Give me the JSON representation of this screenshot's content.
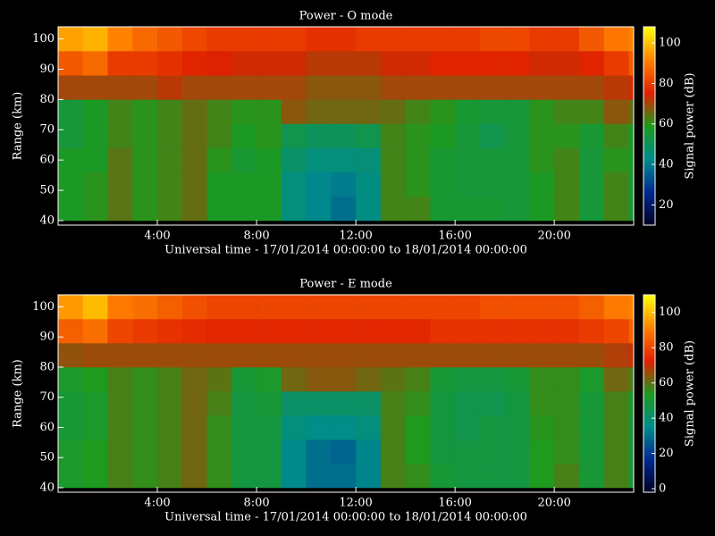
{
  "chart_data": [
    {
      "type": "heatmap",
      "title": "Power - O mode",
      "xlabel": "Universal time - 17/01/2014 00:00:00 to 18/01/2014 00:00:00",
      "ylabel": "Range (km)",
      "colorbar_label": "Signal power (dB)",
      "x": [
        0,
        1,
        2,
        3,
        4,
        5,
        6,
        7,
        8,
        9,
        10,
        11,
        12,
        13,
        14,
        15,
        16,
        17,
        18,
        19,
        20,
        21,
        22,
        23
      ],
      "y": [
        40,
        48,
        56,
        64,
        72,
        80,
        88,
        96
      ],
      "values": [
        [
          58,
          60,
          64,
          60,
          62,
          65,
          58,
          58,
          58,
          45,
          42,
          38,
          44,
          62,
          62,
          56,
          56,
          56,
          55,
          58,
          62,
          55,
          62,
          56
        ],
        [
          58,
          60,
          64,
          60,
          62,
          65,
          58,
          58,
          58,
          45,
          42,
          40,
          44,
          62,
          60,
          56,
          55,
          55,
          55,
          58,
          62,
          55,
          62,
          56
        ],
        [
          58,
          58,
          64,
          60,
          62,
          65,
          60,
          56,
          58,
          48,
          45,
          45,
          46,
          62,
          60,
          56,
          55,
          55,
          55,
          60,
          62,
          55,
          60,
          58
        ],
        [
          55,
          58,
          62,
          60,
          62,
          65,
          62,
          58,
          60,
          52,
          50,
          50,
          52,
          62,
          60,
          58,
          55,
          52,
          55,
          60,
          60,
          56,
          62,
          58
        ],
        [
          55,
          58,
          62,
          60,
          62,
          65,
          62,
          60,
          60,
          68,
          66,
          66,
          66,
          65,
          62,
          60,
          56,
          55,
          55,
          60,
          62,
          62,
          68,
          65
        ],
        [
          70,
          70,
          70,
          70,
          72,
          70,
          70,
          70,
          70,
          70,
          68,
          68,
          68,
          70,
          70,
          70,
          70,
          70,
          70,
          70,
          70,
          70,
          72,
          74
        ],
        [
          85,
          88,
          80,
          80,
          78,
          76,
          75,
          74,
          74,
          74,
          72,
          72,
          72,
          74,
          74,
          76,
          76,
          76,
          76,
          74,
          74,
          76,
          80,
          85
        ],
        [
          96,
          98,
          92,
          88,
          85,
          82,
          80,
          80,
          80,
          80,
          78,
          78,
          80,
          80,
          80,
          80,
          80,
          82,
          82,
          80,
          80,
          85,
          90,
          92
        ]
      ],
      "xlim": [
        0,
        23.2
      ],
      "ylim": [
        38.5,
        104
      ],
      "xticks": [
        {
          "value": 4,
          "label": "4:00"
        },
        {
          "value": 8,
          "label": "8:00"
        },
        {
          "value": 12,
          "label": "12:00"
        },
        {
          "value": 16,
          "label": "16:00"
        },
        {
          "value": 20,
          "label": "20:00"
        }
      ],
      "yticks": [
        40,
        50,
        60,
        70,
        80,
        90,
        100
      ],
      "clim": [
        10,
        108
      ],
      "cticks": [
        20,
        40,
        60,
        80,
        100
      ],
      "colormap": [
        "#000020",
        "#002890",
        "#008c8c",
        "#1e9a1e",
        "#e02000",
        "#ff8000",
        "#ffff00"
      ]
    },
    {
      "type": "heatmap",
      "title": "Power - E mode",
      "xlabel": "Universal time - 17/01/2014 00:00:00 to 18/01/2014 00:00:00",
      "ylabel": "Range (km)",
      "colorbar_label": "Signal power (dB)",
      "x": [
        0,
        1,
        2,
        3,
        4,
        5,
        6,
        7,
        8,
        9,
        10,
        11,
        12,
        13,
        14,
        15,
        16,
        17,
        18,
        19,
        20,
        21,
        22,
        23
      ],
      "y": [
        40,
        48,
        56,
        64,
        72,
        80,
        88,
        96
      ],
      "values": [
        [
          52,
          54,
          58,
          56,
          58,
          62,
          56,
          48,
          48,
          35,
          30,
          30,
          34,
          58,
          56,
          50,
          48,
          48,
          48,
          54,
          58,
          50,
          58,
          50
        ],
        [
          52,
          54,
          58,
          56,
          58,
          62,
          56,
          48,
          48,
          35,
          30,
          28,
          34,
          58,
          54,
          48,
          48,
          48,
          48,
          54,
          56,
          50,
          58,
          50
        ],
        [
          50,
          52,
          58,
          56,
          58,
          62,
          56,
          48,
          48,
          38,
          36,
          36,
          38,
          58,
          54,
          48,
          46,
          48,
          48,
          55,
          56,
          50,
          58,
          50
        ],
        [
          50,
          52,
          58,
          56,
          58,
          62,
          58,
          48,
          50,
          42,
          42,
          42,
          42,
          58,
          56,
          48,
          46,
          46,
          48,
          56,
          56,
          50,
          58,
          52
        ],
        [
          52,
          54,
          58,
          56,
          58,
          62,
          60,
          50,
          52,
          62,
          64,
          64,
          62,
          60,
          58,
          50,
          48,
          48,
          50,
          56,
          56,
          52,
          62,
          58
        ],
        [
          65,
          66,
          66,
          66,
          66,
          66,
          66,
          66,
          66,
          66,
          66,
          66,
          66,
          66,
          66,
          66,
          66,
          66,
          66,
          66,
          66,
          66,
          68,
          70
        ],
        [
          85,
          88,
          80,
          78,
          76,
          75,
          74,
          74,
          74,
          74,
          74,
          74,
          74,
          74,
          74,
          76,
          76,
          76,
          76,
          76,
          76,
          78,
          80,
          85
        ],
        [
          95,
          100,
          90,
          88,
          85,
          82,
          80,
          80,
          80,
          80,
          80,
          80,
          80,
          80,
          80,
          80,
          80,
          82,
          82,
          82,
          82,
          85,
          90,
          92
        ]
      ],
      "xlim": [
        0,
        23.2
      ],
      "ylim": [
        38.5,
        104
      ],
      "xticks": [
        {
          "value": 4,
          "label": "4:00"
        },
        {
          "value": 8,
          "label": "8:00"
        },
        {
          "value": 12,
          "label": "12:00"
        },
        {
          "value": 16,
          "label": "16:00"
        },
        {
          "value": 20,
          "label": "20:00"
        }
      ],
      "yticks": [
        40,
        50,
        60,
        70,
        80,
        90,
        100
      ],
      "clim": [
        -2,
        110
      ],
      "cticks": [
        0,
        20,
        40,
        60,
        80,
        100
      ],
      "colormap": [
        "#000020",
        "#002890",
        "#008c8c",
        "#1e9a1e",
        "#e02000",
        "#ff8000",
        "#ffff00"
      ]
    }
  ]
}
